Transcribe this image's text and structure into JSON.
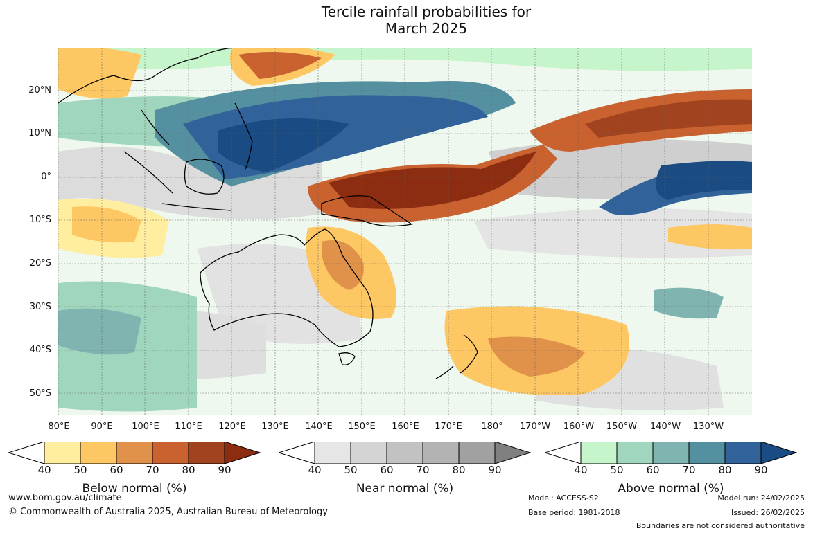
{
  "title": {
    "line1": "Tercile rainfall probabilities for",
    "line2": "March 2025"
  },
  "map": {
    "lat_labels": [
      "20°N",
      "10°N",
      "0°",
      "10°S",
      "20°S",
      "30°S",
      "40°S",
      "50°S"
    ],
    "lat_values": [
      20,
      10,
      0,
      -10,
      -20,
      -30,
      -40,
      -50
    ],
    "lon_labels": [
      "80°E",
      "90°E",
      "100°E",
      "110°E",
      "120°E",
      "130°E",
      "140°E",
      "150°E",
      "160°E",
      "170°E",
      "180°",
      "170°W",
      "160°W",
      "150°W",
      "140°W",
      "130°W"
    ],
    "lat_range": [
      -55,
      30
    ],
    "lon_range": [
      80,
      240
    ]
  },
  "colorbars": [
    {
      "title": "Below normal (%)",
      "ticks": [
        "40",
        "50",
        "60",
        "70",
        "80",
        "90"
      ],
      "colors": [
        "#ffffff",
        "#ffeda0",
        "#fdc864",
        "#e0924a",
        "#c9622f",
        "#a2431f",
        "#8c2d12"
      ]
    },
    {
      "title": "Near normal (%)",
      "ticks": [
        "40",
        "50",
        "60",
        "70",
        "80",
        "90"
      ],
      "colors": [
        "#ffffff",
        "#e6e6e6",
        "#d4d4d4",
        "#c2c2c2",
        "#b3b3b3",
        "#a1a1a1",
        "#808080"
      ]
    },
    {
      "title": "Above normal (%)",
      "ticks": [
        "40",
        "50",
        "60",
        "70",
        "80",
        "90"
      ],
      "colors": [
        "#ffffff",
        "#c7f5cb",
        "#a0d6bd",
        "#80b4b0",
        "#5590a0",
        "#31639a",
        "#1a4b82"
      ]
    }
  ],
  "footer": {
    "url": "www.bom.gov.au/climate",
    "copyright": "© Commonwealth of Australia 2025, Australian Bureau of Meteorology",
    "model": "Model: ACCESS-S2",
    "base_period": "Base period: 1981-2018",
    "model_run": "Model run: 24/02/2025",
    "issued": "Issued: 26/02/2025",
    "boundaries": "Boundaries are not considered authoritative"
  }
}
